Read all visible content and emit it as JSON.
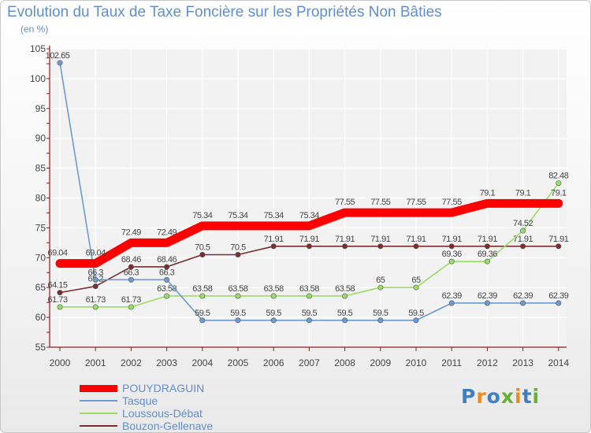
{
  "colors": {
    "text": "#5f8fcf",
    "axis": "#8b1a1a",
    "grid": "#ffffff",
    "label": "#444444"
  },
  "chart_data": {
    "type": "line",
    "title": "Evolution du Taux de Taxe Foncière sur les Propriétés Non Bâties",
    "subtitle": "(en %)",
    "xlabel": "",
    "ylabel": "(en %)",
    "x": [
      "2000",
      "2001",
      "2002",
      "2003",
      "2004",
      "2005",
      "2006",
      "2007",
      "2008",
      "2009",
      "2010",
      "2011",
      "2012",
      "2013",
      "2014"
    ],
    "ylim": [
      55,
      105
    ],
    "yticks": [
      55,
      60,
      65,
      70,
      75,
      80,
      85,
      90,
      95,
      100,
      105
    ],
    "series": [
      {
        "name": "POUYDRAGUIN",
        "color": "#ff0000",
        "values": [
          69.04,
          69.04,
          72.49,
          72.49,
          75.34,
          75.34,
          75.34,
          75.34,
          77.55,
          77.55,
          77.55,
          77.55,
          79.1,
          79.1,
          79.1
        ],
        "labels": [
          "69.04",
          "69.04",
          "72.49",
          "72.49",
          "75.34",
          "75.34",
          "75.34",
          "75.34",
          "77.55",
          "77.55",
          "77.55",
          "77.55",
          "79.1",
          "79.1",
          "79.1"
        ]
      },
      {
        "name": "Tasque",
        "color": "#6a9bd2",
        "values": [
          102.65,
          66.3,
          66.3,
          66.3,
          59.5,
          59.5,
          59.5,
          59.5,
          59.5,
          59.5,
          59.5,
          62.39,
          62.39,
          62.39,
          62.39
        ],
        "labels": [
          "102.65",
          "66.3",
          "66.3",
          "66.3",
          "59.5",
          "59.5",
          "59.5",
          "59.5",
          "59.5",
          "59.5",
          "59.5",
          "62.39",
          "62.39",
          "62.39",
          "62.39"
        ]
      },
      {
        "name": "Loussous-Débat",
        "color": "#99dd66",
        "values": [
          61.73,
          61.73,
          61.73,
          63.58,
          63.58,
          63.58,
          63.58,
          63.58,
          63.58,
          65,
          65,
          69.36,
          69.36,
          74.52,
          82.48
        ],
        "labels": [
          "61.73",
          "61.73",
          "61.73",
          "63.58",
          "63.58",
          "63.58",
          "63.58",
          "63.58",
          "63.58",
          "65",
          "65",
          "69.36",
          "69.36",
          "74.52",
          "82.48"
        ]
      },
      {
        "name": "Bouzon-Gellenave",
        "color": "#7a2e2e",
        "values": [
          64.15,
          65.2,
          68.46,
          68.46,
          70.5,
          70.5,
          71.91,
          71.91,
          71.91,
          71.91,
          71.91,
          71.91,
          71.91,
          71.91,
          71.91
        ],
        "labels": [
          "64.15",
          "65.2",
          "68.46",
          "68.46",
          "70.5",
          "70.5",
          "71.91",
          "71.91",
          "71.91",
          "71.91",
          "71.91",
          "71.91",
          "71.91",
          "71.91",
          "71.91"
        ]
      }
    ]
  },
  "logo": {
    "letters": [
      {
        "ch": "P",
        "color": "#3d7fc4"
      },
      {
        "ch": "r",
        "color": "#f08a1c"
      },
      {
        "ch": "o",
        "color": "#3d7fc4"
      },
      {
        "ch": "x",
        "color": "#66b032"
      },
      {
        "ch": "i",
        "color": "#f08a1c"
      },
      {
        "ch": "t",
        "color": "#3d7fc4"
      },
      {
        "ch": "i",
        "color": "#66b032"
      }
    ]
  }
}
